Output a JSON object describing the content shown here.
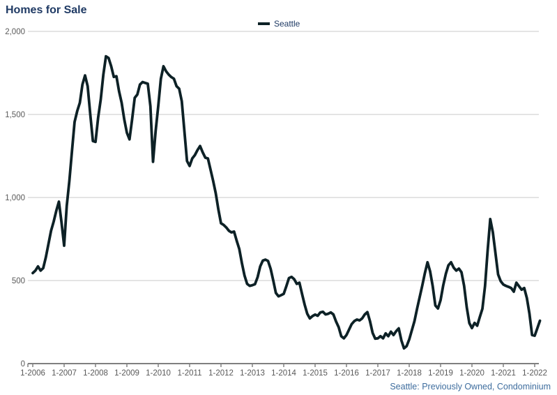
{
  "header": {
    "title": "Homes for Sale"
  },
  "legend": {
    "label": "Seattle",
    "swatch_color": "#0d2126"
  },
  "footer": {
    "note": "Seattle: Previously Owned, Condominium"
  },
  "colors": {
    "title": "#1f3a64",
    "series_line": "#0d2126",
    "axis_label": "#595959",
    "gridline": "#c9c9c9",
    "axis_line": "#808080",
    "source_note": "#3e6d9e",
    "background": "#ffffff"
  },
  "chart_data": {
    "type": "line",
    "title": "Homes for Sale",
    "xlabel": "",
    "ylabel": "",
    "ylim": [
      0,
      2000
    ],
    "y_ticks": [
      0,
      500,
      1000,
      1500,
      2000
    ],
    "y_tick_labels": [
      "0",
      "500",
      "1,000",
      "1,500",
      "2,000"
    ],
    "x_tick_labels": [
      "1-2006",
      "1-2007",
      "1-2008",
      "1-2009",
      "1-2010",
      "1-2011",
      "1-2012",
      "1-2013",
      "1-2014",
      "1-2015",
      "1-2016",
      "1-2017",
      "1-2018",
      "1-2019",
      "1-2020",
      "1-2021",
      "1-2022"
    ],
    "months_per_x_tick": 12,
    "grid": "horizontal",
    "legend_position": "top-center",
    "source_note": "Seattle: Previously Owned, Condominium",
    "series": [
      {
        "name": "Seattle",
        "color": "#0d2126",
        "start": "2006-01",
        "end": "2022-03",
        "frequency": "monthly",
        "values": [
          545,
          560,
          585,
          560,
          575,
          640,
          720,
          800,
          855,
          920,
          975,
          850,
          710,
          950,
          1100,
          1280,
          1455,
          1520,
          1570,
          1680,
          1735,
          1670,
          1500,
          1340,
          1335,
          1480,
          1590,
          1740,
          1850,
          1840,
          1790,
          1726,
          1730,
          1640,
          1570,
          1470,
          1390,
          1350,
          1470,
          1600,
          1620,
          1680,
          1695,
          1690,
          1685,
          1550,
          1215,
          1400,
          1550,
          1715,
          1790,
          1760,
          1740,
          1725,
          1715,
          1670,
          1655,
          1580,
          1400,
          1220,
          1190,
          1235,
          1255,
          1285,
          1310,
          1272,
          1240,
          1235,
          1168,
          1100,
          1025,
          928,
          845,
          835,
          820,
          800,
          790,
          795,
          740,
          690,
          605,
          530,
          480,
          468,
          472,
          478,
          520,
          585,
          620,
          626,
          618,
          570,
          500,
          425,
          405,
          412,
          420,
          466,
          515,
          522,
          508,
          480,
          487,
          420,
          355,
          300,
          272,
          286,
          295,
          288,
          308,
          312,
          296,
          300,
          308,
          296,
          254,
          220,
          165,
          152,
          172,
          205,
          238,
          256,
          265,
          260,
          272,
          296,
          310,
          255,
          185,
          150,
          152,
          165,
          152,
          182,
          165,
          192,
          172,
          195,
          212,
          140,
          92,
          105,
          145,
          200,
          255,
          330,
          400,
          470,
          545,
          610,
          555,
          465,
          350,
          332,
          382,
          470,
          540,
          592,
          610,
          578,
          560,
          572,
          550,
          468,
          340,
          244,
          214,
          245,
          228,
          280,
          330,
          466,
          680,
          870,
          790,
          664,
          537,
          496,
          476,
          468,
          462,
          455,
          433,
          487,
          466,
          445,
          455,
          395,
          300,
          172,
          168,
          212,
          258
        ]
      }
    ]
  }
}
